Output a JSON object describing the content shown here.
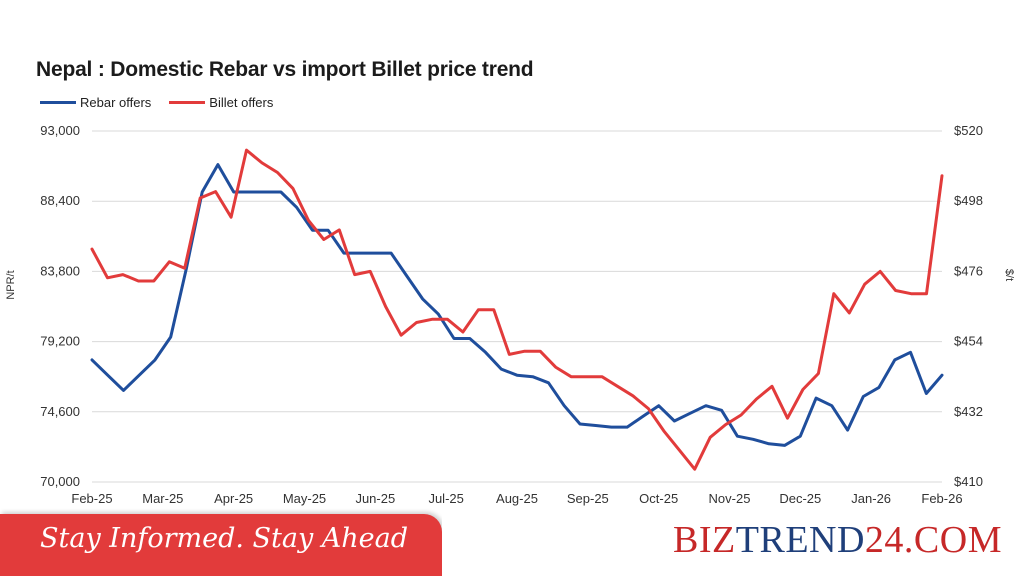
{
  "chart_data": {
    "type": "line",
    "title": "Nepal : Domestic Rebar vs import Billet price trend",
    "ylabel_left": "NPR/t",
    "ylabel_right": "$/t",
    "ylim_left": [
      70000,
      93000
    ],
    "ylim_right": [
      410,
      520
    ],
    "yticks_left": [
      "93,000",
      "88,400",
      "83,800",
      "79,200",
      "74,600",
      "70,000"
    ],
    "yticks_right": [
      "$520",
      "$498",
      "$476",
      "$454",
      "$432",
      "$410"
    ],
    "x_labels": [
      "Feb-25",
      "Mar-25",
      "Apr-25",
      "May-25",
      "Jun-25",
      "Jul-25",
      "Aug-25",
      "Sep-25",
      "Oct-25",
      "Nov-25",
      "Dec-25",
      "Jan-26",
      "Feb-26"
    ],
    "grid": true,
    "legend_position": "top-left",
    "series": [
      {
        "name": "Rebar offers",
        "axis": "left",
        "color": "#1f4e9c",
        "values": [
          78000,
          77000,
          76000,
          77000,
          78000,
          79500,
          84000,
          89000,
          90800,
          89000,
          89000,
          89000,
          89000,
          88000,
          86500,
          86500,
          85000,
          85000,
          85000,
          85000,
          83500,
          82000,
          81000,
          79400,
          79400,
          78500,
          77400,
          77000,
          76900,
          76500,
          75000,
          73800,
          73700,
          73600,
          73600,
          74300,
          75000,
          74000,
          74500,
          75000,
          74700,
          73000,
          72800,
          72500,
          72400,
          73000,
          75500,
          75000,
          73400,
          75600,
          76200,
          78000,
          78500,
          75800,
          77000
        ]
      },
      {
        "name": "Billet offers",
        "axis": "right",
        "color": "#e23b3b",
        "values": [
          483,
          474,
          475,
          473,
          473,
          479,
          477,
          499,
          501,
          493,
          514,
          510,
          507,
          502,
          492,
          486,
          489,
          475,
          476,
          465,
          456,
          460,
          461,
          461,
          457,
          464,
          464,
          450,
          451,
          451,
          446,
          443,
          443,
          443,
          440,
          437,
          433,
          426,
          420,
          414,
          424,
          428,
          431,
          436,
          440,
          430,
          439,
          444,
          469,
          463,
          472,
          476,
          470,
          469,
          469,
          506
        ]
      }
    ]
  },
  "banner": {
    "tagline": "Stay Informed. Stay Ahead",
    "brand_prefix": "BIZ",
    "brand_accent": "TREND",
    "brand_suffix": "24.COM"
  }
}
